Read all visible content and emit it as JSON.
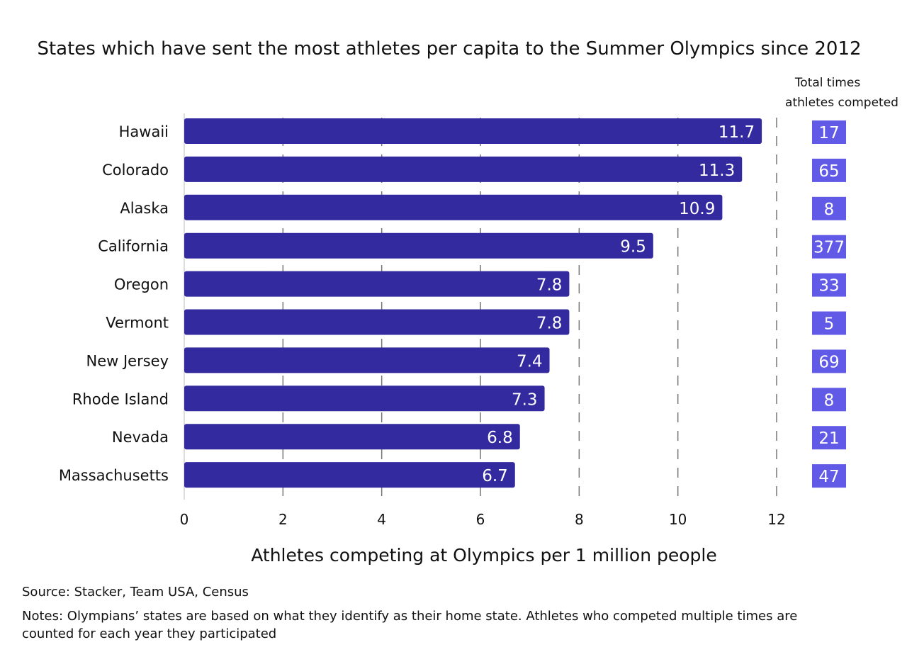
{
  "chart_data": {
    "type": "bar",
    "orientation": "horizontal",
    "title": "States which have sent the most athletes per capita to the Summer Olympics since 2012",
    "xlabel": "Athletes competing at Olympics per 1 million people",
    "xlim": [
      0,
      12
    ],
    "xticks": [
      0,
      2,
      4,
      6,
      8,
      10,
      12
    ],
    "grid": "vertical dashed",
    "categories": [
      "Hawaii",
      "Colorado",
      "Alaska",
      "California",
      "Oregon",
      "Vermont",
      "New Jersey",
      "Rhode Island",
      "Nevada",
      "Massachusetts"
    ],
    "values": [
      11.7,
      11.3,
      10.9,
      9.5,
      7.8,
      7.8,
      7.4,
      7.3,
      6.8,
      6.7
    ],
    "side_column": {
      "header": [
        "Total times",
        "athletes competed"
      ],
      "values": [
        17,
        65,
        8,
        377,
        33,
        5,
        69,
        8,
        21,
        47
      ]
    },
    "source": "Source:  Stacker, Team USA, Census",
    "notes": [
      "Notes: Olympians’ states are based on what they identify as their home state. Athletes who competed multiple times are",
      "counted for each year they participated"
    ],
    "colors": {
      "bar": "#322a9e",
      "count_box": "#615ae6"
    }
  }
}
